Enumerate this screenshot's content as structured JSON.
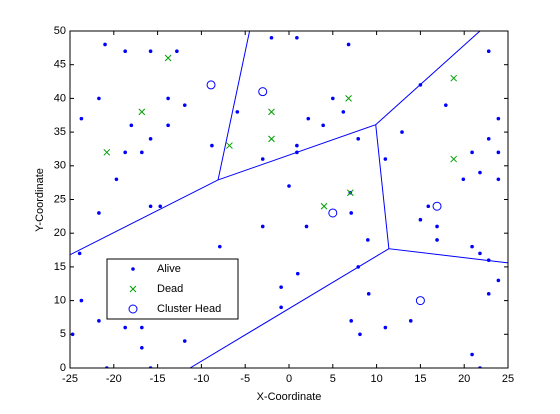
{
  "chart_data": {
    "type": "scatter",
    "xlabel": "X-Coordinate",
    "ylabel": "Y-Coordinate",
    "xlim": [
      -25,
      25
    ],
    "xticks": [
      -25,
      -20,
      -15,
      -10,
      -5,
      0,
      5,
      10,
      15,
      20,
      25
    ],
    "ylim": [
      0,
      50
    ],
    "yticks": [
      0,
      5,
      10,
      15,
      20,
      25,
      30,
      35,
      40,
      45,
      50
    ],
    "grid": false,
    "legend": "lower left",
    "series": [
      {
        "name": "Alive",
        "color": "#0000ff",
        "marker": "dot",
        "x": [
          -21,
          -18.7,
          -15.8,
          -12.8,
          -2,
          0.9,
          6.8,
          22.8,
          -21.7,
          -13.8,
          -11.9,
          -23.7,
          -5.9,
          5,
          6.2,
          2.2,
          3.9,
          15,
          17.9,
          23.9,
          -18,
          -13.8,
          -15.8,
          7.9,
          22.8,
          12.9,
          11,
          -18.7,
          -16.8,
          -8.8,
          0.9,
          0.9,
          -3,
          20.9,
          23.9,
          -19.7,
          0,
          19.9,
          21.8,
          23.9,
          -15.8,
          -14.7,
          -21.7,
          7.1,
          15.9,
          15,
          -3,
          2,
          16.9,
          9,
          16.9,
          -7.9,
          20.9,
          -23.9,
          21.8,
          22.8,
          7.9,
          1,
          -0.9,
          23.9,
          9.1,
          22.8,
          -23.7,
          -0.9,
          -21.7,
          -18.7,
          -16.8,
          7.1,
          11,
          13.9,
          8.1,
          -24.7,
          -11.9,
          -16.8,
          20.9,
          -20.8,
          -15.8,
          21.8,
          7
        ],
        "y": [
          48,
          47,
          47,
          47,
          49,
          49,
          48,
          47,
          40,
          40,
          39,
          37,
          38,
          40,
          38,
          37,
          36,
          42,
          39,
          37,
          36,
          36,
          34,
          34,
          34,
          35,
          31,
          32,
          32,
          33,
          33,
          32,
          31,
          32,
          32,
          28,
          27,
          28,
          29,
          28,
          24,
          24,
          23,
          23,
          24,
          22,
          21,
          21,
          21,
          19,
          19,
          18,
          18,
          17,
          17,
          16,
          15,
          14,
          12,
          13,
          11,
          11,
          10,
          9,
          7,
          6,
          6,
          7,
          6,
          7,
          5,
          5,
          4,
          3,
          2,
          0,
          0,
          0,
          26
        ]
      },
      {
        "name": "Dead",
        "color": "#00a000",
        "marker": "x",
        "x": [
          -13.8,
          -16.8,
          -20.8,
          -6.8,
          -2,
          -2,
          6.8,
          18.8,
          18.8,
          4,
          7
        ],
        "y": [
          46,
          38,
          32,
          33,
          38,
          34,
          40,
          43,
          31,
          24,
          26
        ]
      },
      {
        "name": "Cluster Head",
        "color": "#0000ff",
        "marker": "circle",
        "x": [
          -8.9,
          -3,
          5,
          16.9,
          15
        ],
        "y": [
          42,
          41,
          23,
          24,
          10
        ]
      }
    ],
    "lines": [
      {
        "color": "#0000ff",
        "x": [
          -4.5,
          -8.1,
          -25
        ],
        "y": [
          50,
          27.9,
          16.8
        ]
      },
      {
        "color": "#0000ff",
        "x": [
          -8.1,
          9.9,
          21.8
        ],
        "y": [
          27.9,
          36.1,
          50
        ]
      },
      {
        "color": "#0000ff",
        "x": [
          9.9,
          11.4,
          25
        ],
        "y": [
          36.1,
          17.7,
          15.6
        ]
      },
      {
        "color": "#0000ff",
        "x": [
          11.4,
          -11.3
        ],
        "y": [
          17.7,
          0
        ]
      }
    ]
  }
}
